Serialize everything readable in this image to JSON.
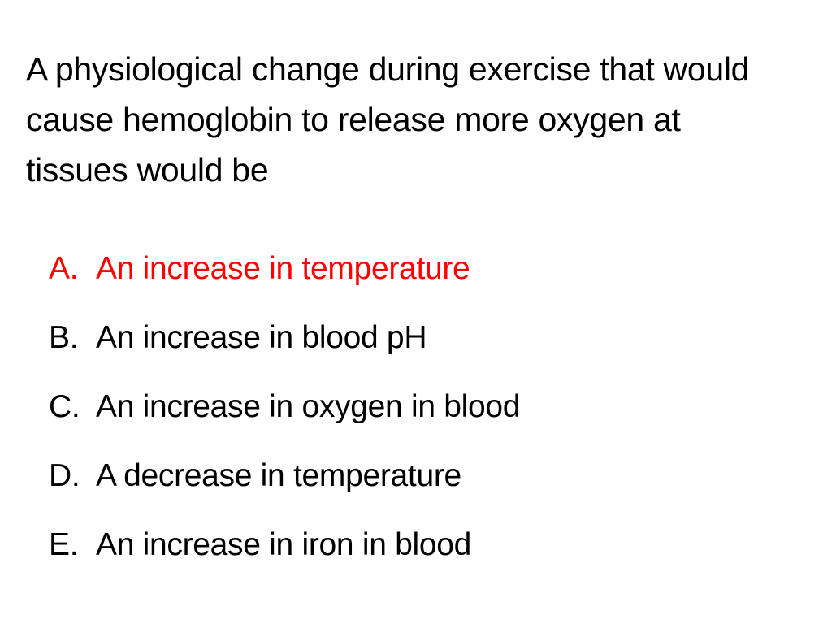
{
  "slide": {
    "question": "A physiological change during exercise that would cause hemoglobin to release more oxygen at tissues would be",
    "options": [
      {
        "letter": "A.",
        "text": "An increase in temperature",
        "highlight": true
      },
      {
        "letter": "B.",
        "text": "An increase in blood pH",
        "highlight": false
      },
      {
        "letter": "C.",
        "text": "An increase in oxygen in blood",
        "highlight": false
      },
      {
        "letter": "D.",
        "text": "A decrease in temperature",
        "highlight": false
      },
      {
        "letter": "E.",
        "text": "An increase in iron in blood",
        "highlight": false
      }
    ],
    "colors": {
      "text": "#000000",
      "highlight": "#ff0000",
      "background": "#ffffff"
    }
  }
}
